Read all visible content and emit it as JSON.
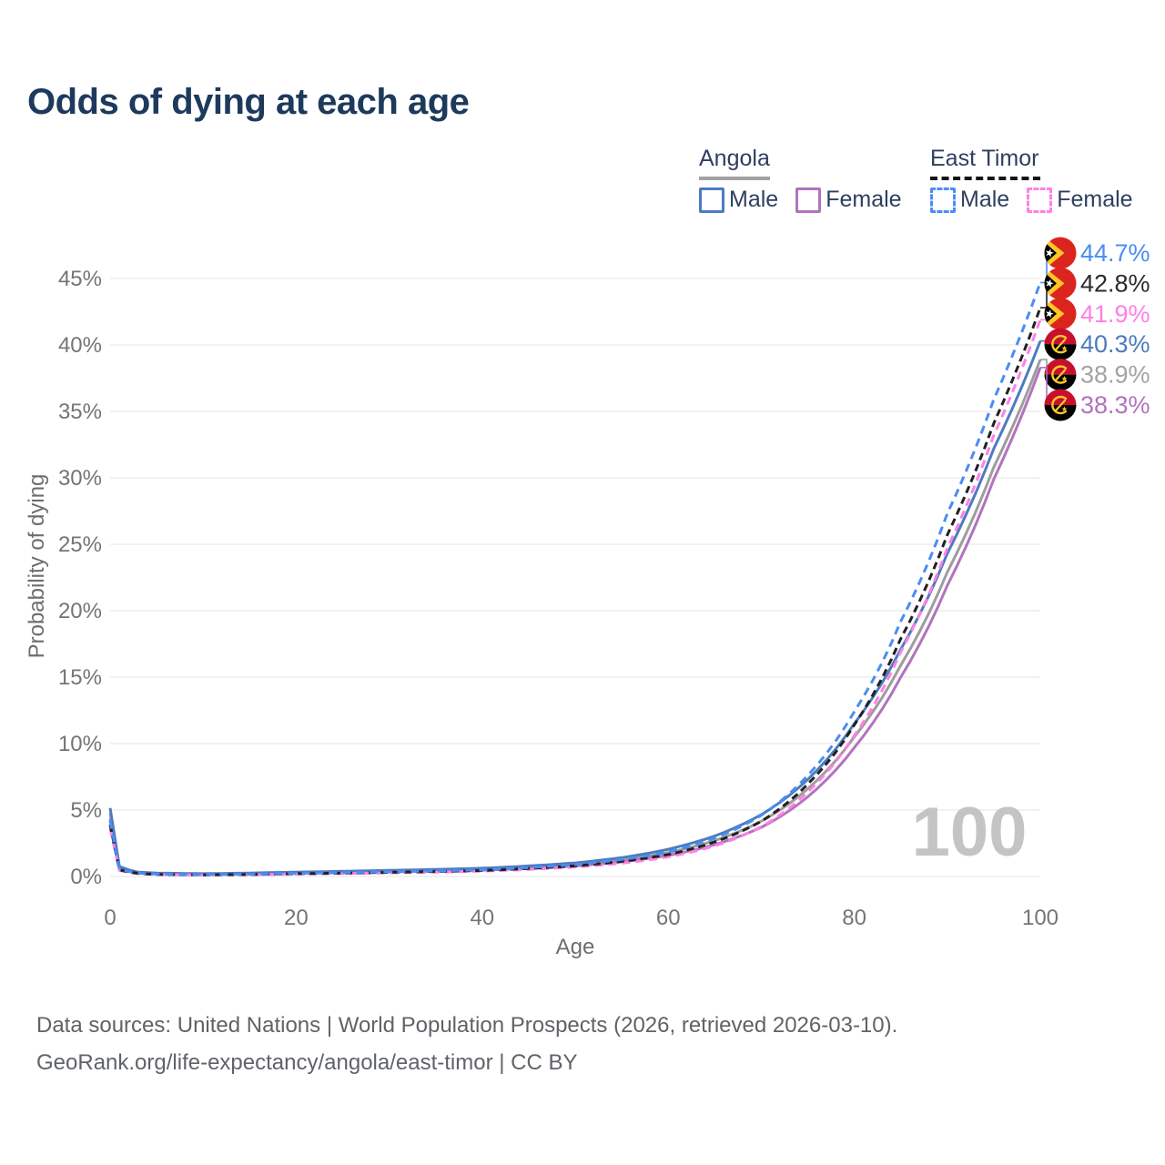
{
  "title": "Odds of dying at each age",
  "legend": {
    "groups": [
      {
        "label": "Angola",
        "line_style": "solid",
        "underline_color": "#a2a2a2",
        "items": [
          {
            "label": "Male",
            "color": "#4d7cbe"
          },
          {
            "label": "Female",
            "color": "#b273be"
          }
        ]
      },
      {
        "label": "East Timor",
        "line_style": "dashed",
        "underline_color": "#151515",
        "items": [
          {
            "label": "Male",
            "color": "#4b8cf5"
          },
          {
            "label": "Female",
            "color": "#ff80e5"
          }
        ]
      }
    ]
  },
  "chart_data": {
    "type": "line",
    "title": "Odds of dying at each age",
    "xlabel": "Age",
    "ylabel": "Probability of dying",
    "xlim": [
      0,
      100
    ],
    "ylim_pct": [
      0,
      47
    ],
    "x_ticks": [
      0,
      20,
      40,
      60,
      80,
      100
    ],
    "y_tick_labels": [
      "0%",
      "5%",
      "10%",
      "15%",
      "20%",
      "25%",
      "30%",
      "35%",
      "40%",
      "45%"
    ],
    "grid": "horizontal",
    "legend_position": "top-right",
    "watermark": "100",
    "watermark_color": "#c4c4c4",
    "series": [
      {
        "id": "tl-male",
        "name": "East Timor Male",
        "country": "East Timor",
        "flag": "timor",
        "sex": "male",
        "color": "#4b8cf5",
        "dash": "dashed",
        "end_label": "44.7%",
        "end_value_pct": 44.7,
        "points_age_pct": [
          [
            0,
            4.2
          ],
          [
            1,
            0.55
          ],
          [
            3,
            0.25
          ],
          [
            5,
            0.18
          ],
          [
            10,
            0.14
          ],
          [
            15,
            0.17
          ],
          [
            20,
            0.24
          ],
          [
            30,
            0.35
          ],
          [
            40,
            0.5
          ],
          [
            50,
            0.9
          ],
          [
            55,
            1.28
          ],
          [
            60,
            1.85
          ],
          [
            65,
            2.9
          ],
          [
            70,
            4.6
          ],
          [
            75,
            7.6
          ],
          [
            80,
            12.4
          ],
          [
            85,
            19.2
          ],
          [
            90,
            27.3
          ],
          [
            95,
            35.9
          ],
          [
            100,
            44.7
          ]
        ]
      },
      {
        "id": "tl-avg",
        "name": "East Timor",
        "country": "East Timor",
        "flag": "timor",
        "sex": "both",
        "color": "#212121",
        "label_color": "#2b2b2b",
        "dash": "dashed",
        "end_label": "42.8%",
        "end_value_pct": 42.8,
        "points_age_pct": [
          [
            0,
            3.9
          ],
          [
            1,
            0.5
          ],
          [
            3,
            0.23
          ],
          [
            5,
            0.16
          ],
          [
            10,
            0.12
          ],
          [
            15,
            0.15
          ],
          [
            20,
            0.21
          ],
          [
            30,
            0.31
          ],
          [
            40,
            0.45
          ],
          [
            50,
            0.8
          ],
          [
            55,
            1.14
          ],
          [
            60,
            1.65
          ],
          [
            65,
            2.6
          ],
          [
            70,
            4.15
          ],
          [
            75,
            6.95
          ],
          [
            80,
            11.4
          ],
          [
            85,
            17.9
          ],
          [
            90,
            25.7
          ],
          [
            95,
            34.1
          ],
          [
            100,
            42.8
          ]
        ]
      },
      {
        "id": "tl-female",
        "name": "East Timor Female",
        "country": "East Timor",
        "flag": "timor",
        "sex": "female",
        "color": "#ff80e5",
        "dash": "dashed",
        "end_label": "41.9%",
        "end_value_pct": 41.9,
        "points_age_pct": [
          [
            0,
            3.6
          ],
          [
            1,
            0.45
          ],
          [
            3,
            0.21
          ],
          [
            5,
            0.14
          ],
          [
            10,
            0.11
          ],
          [
            15,
            0.13
          ],
          [
            20,
            0.18
          ],
          [
            30,
            0.27
          ],
          [
            40,
            0.4
          ],
          [
            50,
            0.71
          ],
          [
            55,
            1.0
          ],
          [
            60,
            1.47
          ],
          [
            65,
            2.3
          ],
          [
            70,
            3.75
          ],
          [
            75,
            6.35
          ],
          [
            80,
            10.6
          ],
          [
            85,
            16.9
          ],
          [
            90,
            24.7
          ],
          [
            95,
            33.2
          ],
          [
            100,
            41.9
          ]
        ]
      },
      {
        "id": "ao-male",
        "name": "Angola Male",
        "country": "Angola",
        "flag": "angola",
        "sex": "male",
        "color": "#4d7cbe",
        "dash": "solid",
        "end_label": "40.3%",
        "end_value_pct": 40.3,
        "points_age_pct": [
          [
            0,
            5.15
          ],
          [
            1,
            0.75
          ],
          [
            3,
            0.33
          ],
          [
            5,
            0.26
          ],
          [
            10,
            0.21
          ],
          [
            15,
            0.26
          ],
          [
            20,
            0.33
          ],
          [
            30,
            0.46
          ],
          [
            40,
            0.62
          ],
          [
            50,
            1.02
          ],
          [
            55,
            1.42
          ],
          [
            60,
            2.05
          ],
          [
            65,
            3.05
          ],
          [
            70,
            4.65
          ],
          [
            75,
            7.3
          ],
          [
            80,
            11.5
          ],
          [
            85,
            17.1
          ],
          [
            90,
            24.3
          ],
          [
            95,
            32.2
          ],
          [
            100,
            40.3
          ]
        ]
      },
      {
        "id": "ao-avg",
        "name": "Angola",
        "country": "Angola",
        "flag": "angola",
        "sex": "both",
        "color": "#9d9d9d",
        "label_color": "#a3a3a3",
        "dash": "solid",
        "end_label": "38.9%",
        "end_value_pct": 38.9,
        "points_age_pct": [
          [
            0,
            4.75
          ],
          [
            1,
            0.7
          ],
          [
            3,
            0.3
          ],
          [
            5,
            0.24
          ],
          [
            10,
            0.19
          ],
          [
            15,
            0.23
          ],
          [
            20,
            0.29
          ],
          [
            30,
            0.4
          ],
          [
            40,
            0.54
          ],
          [
            50,
            0.9
          ],
          [
            55,
            1.25
          ],
          [
            60,
            1.8
          ],
          [
            65,
            2.7
          ],
          [
            70,
            4.15
          ],
          [
            75,
            6.6
          ],
          [
            80,
            10.5
          ],
          [
            85,
            15.9
          ],
          [
            90,
            22.9
          ],
          [
            95,
            30.8
          ],
          [
            100,
            38.9
          ]
        ]
      },
      {
        "id": "ao-female",
        "name": "Angola Female",
        "country": "Angola",
        "flag": "angola",
        "sex": "female",
        "color": "#b273be",
        "dash": "solid",
        "end_label": "38.3%",
        "end_value_pct": 38.3,
        "points_age_pct": [
          [
            0,
            4.35
          ],
          [
            1,
            0.64
          ],
          [
            3,
            0.28
          ],
          [
            5,
            0.22
          ],
          [
            10,
            0.17
          ],
          [
            15,
            0.2
          ],
          [
            20,
            0.25
          ],
          [
            30,
            0.35
          ],
          [
            40,
            0.47
          ],
          [
            50,
            0.79
          ],
          [
            55,
            1.1
          ],
          [
            60,
            1.58
          ],
          [
            65,
            2.4
          ],
          [
            70,
            3.7
          ],
          [
            75,
            6.0
          ],
          [
            80,
            9.7
          ],
          [
            85,
            15.0
          ],
          [
            90,
            21.9
          ],
          [
            95,
            29.9
          ],
          [
            100,
            38.3
          ]
        ]
      }
    ],
    "flag_colors": {
      "timor": {
        "field": "#dc241f",
        "triangle_outer": "#ffc726",
        "triangle_inner": "#000000",
        "star": "#ffffff"
      },
      "angola": {
        "top": "#c8102e",
        "bottom": "#000000",
        "emblem": "#fdc82a"
      }
    }
  },
  "footer": {
    "line1": "Data sources: United Nations | World Population Prospects (2026, retrieved 2026-03-10).",
    "line2": "GeoRank.org/life-expectancy/angola/east-timor | CC BY"
  }
}
